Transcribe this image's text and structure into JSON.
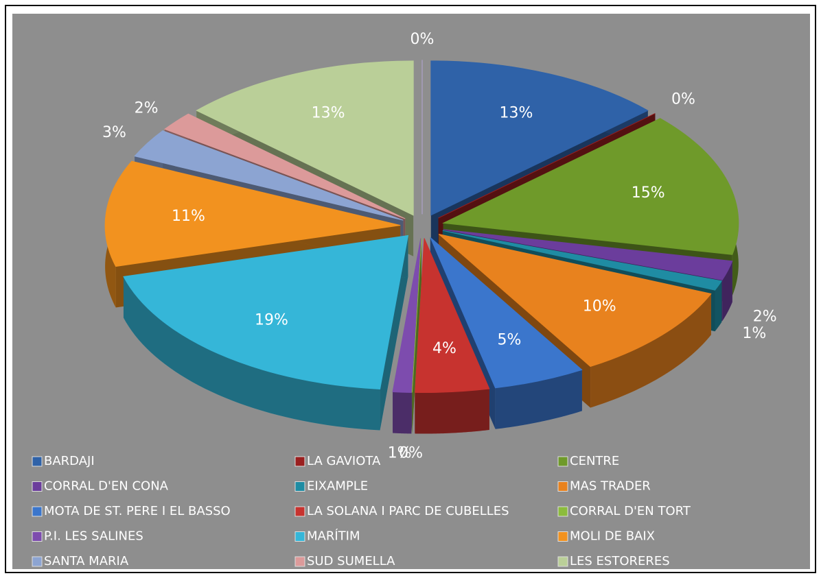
{
  "chart_data": {
    "type": "pie",
    "categories": [
      "BARDAJI",
      "LA GAVIOTA",
      "CENTRE",
      "CORRAL D'EN CONA",
      "EIXAMPLE",
      "MAS TRADER",
      "MOTA DE ST. PERE I EL BASSO",
      "LA SOLANA I PARC DE CUBELLES",
      "CORRAL D'EN TORT",
      "P.I. LES SALINES",
      "MARÍTIM",
      "MOLI DE BAIX",
      "SANTA MARIA",
      "SUD SUMELLA",
      "LES ESTORERES",
      null
    ],
    "values": [
      13,
      0,
      15,
      2,
      1,
      10,
      5,
      4,
      0,
      1,
      19,
      11,
      3,
      2,
      13,
      0
    ],
    "value_labels": [
      "13%",
      "0%",
      "15%",
      "2%",
      "1%",
      "10%",
      "5%",
      "4%",
      "0%",
      "1%",
      "19%",
      "11%",
      "3%",
      "2%",
      "13%",
      "0%"
    ],
    "colors": [
      "#2f62a8",
      "#9a1f1f",
      "#6f9a2a",
      "#6b3d9c",
      "#1f8ca3",
      "#e8821e",
      "#3b76cc",
      "#c7332f",
      "#8cbc3c",
      "#7d4cae",
      "#35b6d8",
      "#f2921f",
      "#8ca4d2",
      "#dc9a9a",
      "#bacf98",
      "#b4a4d6"
    ],
    "legend": "bottom"
  }
}
